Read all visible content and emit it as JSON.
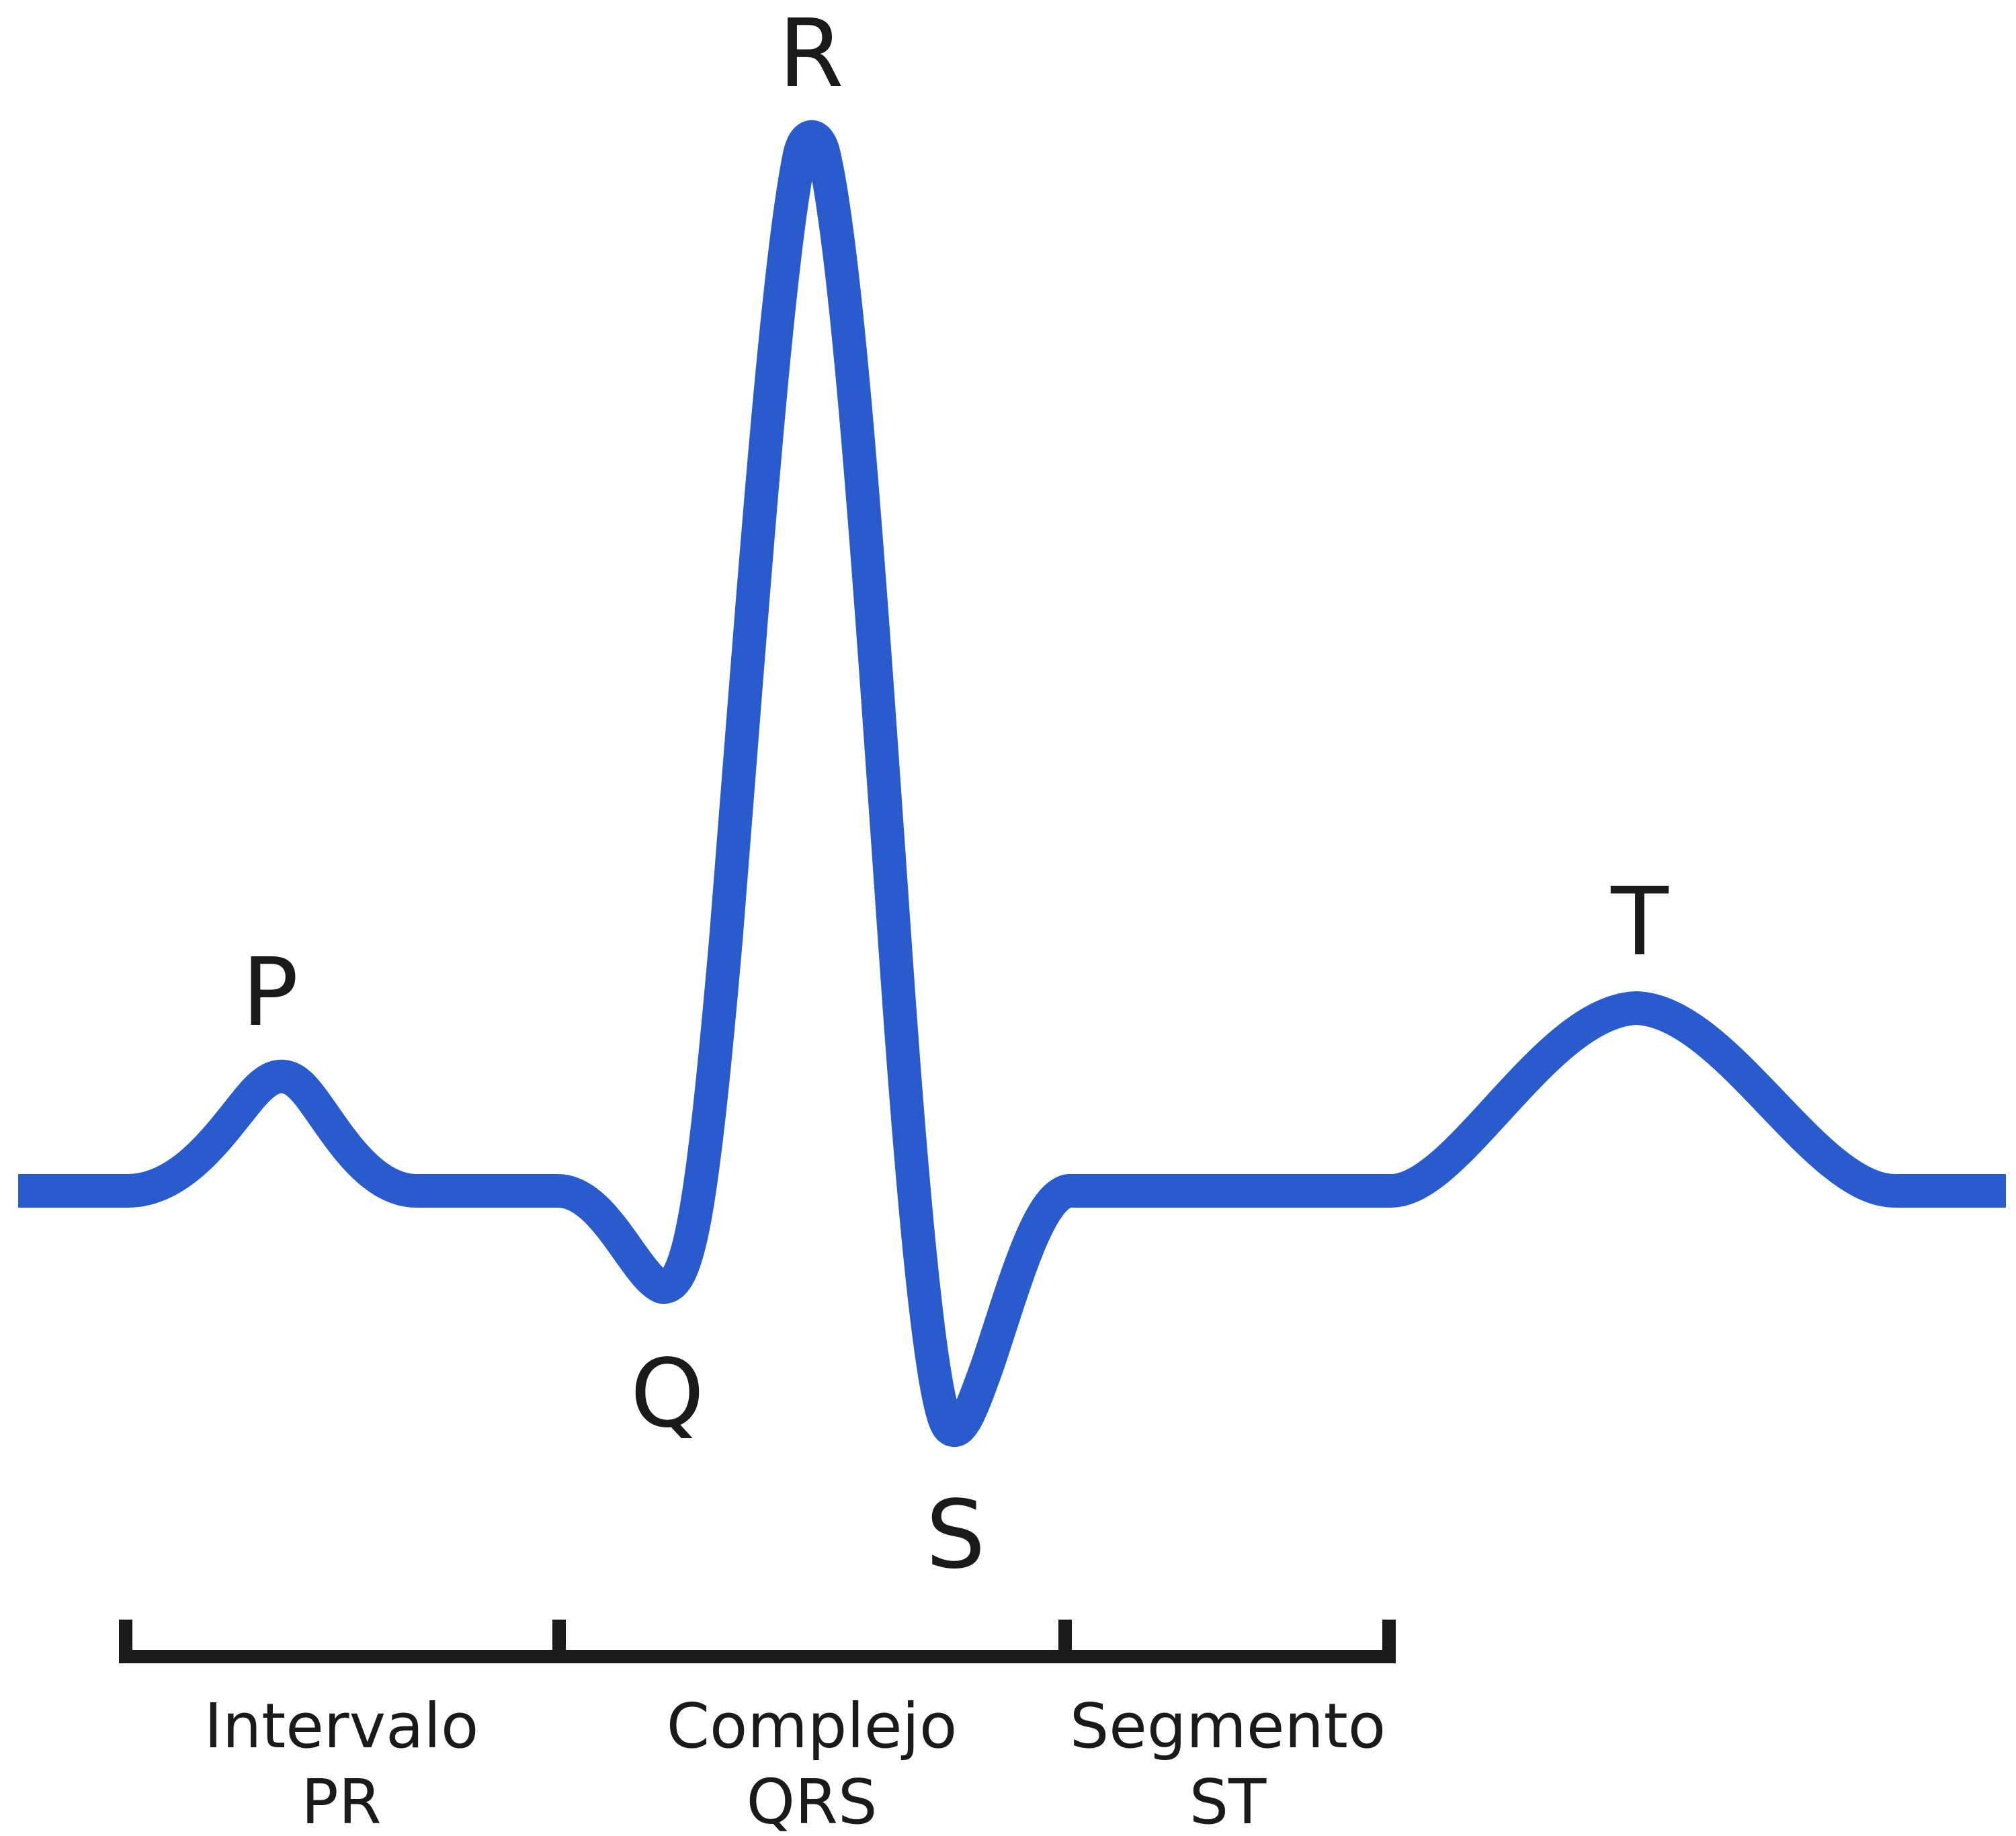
{
  "colors": {
    "trace": "#2A5BCC",
    "bracket": "#1a1a1a",
    "text": "#1a1a1a",
    "background": "#ffffff"
  },
  "waves": {
    "p": "P",
    "q": "Q",
    "r": "R",
    "s": "S",
    "t": "T"
  },
  "segments": [
    {
      "line1": "Intervalo",
      "line2": "PR"
    },
    {
      "line1": "Complejo",
      "line2": "QRS"
    },
    {
      "line1": "Segmento",
      "line2": "ST"
    }
  ]
}
